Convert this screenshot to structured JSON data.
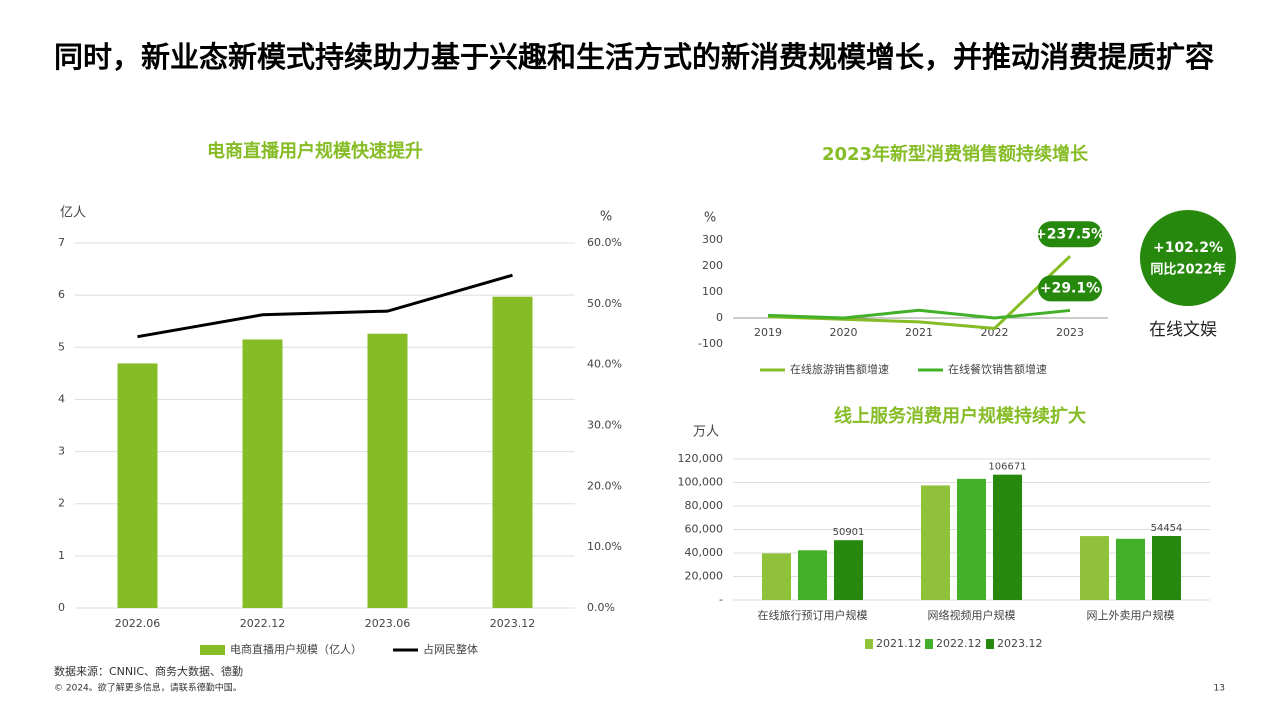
{
  "title": "同时，新业态新模式持续助力基于兴趣和生活方式的新消费规模增长，并推动消费提质扩容",
  "chart_data": [
    {
      "type": "bar",
      "title": "电商直播用户规模快速提升",
      "y_label": "亿人",
      "y2_label": "%",
      "categories": [
        "2022.06",
        "2022.12",
        "2023.06",
        "2023.12"
      ],
      "series": [
        {
          "name": "电商直播用户规模（亿人）",
          "color": "#86bc25",
          "values": [
            4.69,
            5.15,
            5.26,
            5.97
          ]
        },
        {
          "name": "占网民整体",
          "type": "line",
          "axis": "y2",
          "color": "#000000",
          "values": [
            44.6,
            48.2,
            48.8,
            54.7
          ]
        }
      ],
      "ylim": [
        0,
        7
      ],
      "yticks": [
        0,
        1,
        2,
        3,
        4,
        5,
        6,
        7
      ],
      "y2lim": [
        0,
        60
      ],
      "y2ticks": [
        {
          "value": 0,
          "label": "0.0%"
        },
        {
          "value": 10,
          "label": "10.0%"
        },
        {
          "value": 20,
          "label": "20.0%"
        },
        {
          "value": 30,
          "label": "30.0%"
        },
        {
          "value": 40,
          "label": "40.0%"
        },
        {
          "value": 50,
          "label": "50.0%"
        },
        {
          "value": 60,
          "label": "60.0%"
        }
      ],
      "grid": true
    },
    {
      "type": "line",
      "title": "2023年新型消费销售额持续增长",
      "y_label": "%",
      "categories": [
        "2019",
        "2020",
        "2021",
        "2022",
        "2023"
      ],
      "series": [
        {
          "name": "在线旅游销售额增速",
          "color": "#86bc25",
          "values": [
            5,
            -5,
            -15,
            -40,
            237.5
          ],
          "value_labels": [
            null,
            null,
            null,
            null,
            "+237.5%"
          ]
        },
        {
          "name": "在线餐饮销售额增速",
          "color": "#43b02a",
          "values": [
            10,
            0,
            30,
            0,
            29.1
          ],
          "value_labels": [
            null,
            null,
            null,
            null,
            "+29.1%"
          ]
        }
      ],
      "ylim": [
        -100,
        300
      ],
      "yticks": [
        -100,
        0,
        100,
        200,
        300
      ],
      "grid": false,
      "callout": {
        "value": "+102.2%",
        "note": "同比2022年",
        "label": "在线文娱"
      }
    },
    {
      "type": "bar",
      "title": "线上服务消费用户规模持续扩大",
      "y_label": "万人",
      "categories": [
        "在线旅行预订用户规模",
        "网络视频用户规模",
        "网上外卖用户规模"
      ],
      "series": [
        {
          "name": "2021.12",
          "color": "#8fc23a",
          "values": [
            39700,
            97500,
            54400
          ]
        },
        {
          "name": "2022.12",
          "color": "#43b02a",
          "values": [
            42300,
            103100,
            52100
          ]
        },
        {
          "name": "2023.12",
          "color": "#26890d",
          "values": [
            50901,
            106671,
            54454
          ],
          "show_values": true
        }
      ],
      "ylim": [
        0,
        120000
      ],
      "yticks": [
        {
          "value": 0,
          "label": "-"
        },
        {
          "value": 20000,
          "label": "20,000"
        },
        {
          "value": 40000,
          "label": "40,000"
        },
        {
          "value": 60000,
          "label": "60,000"
        },
        {
          "value": 80000,
          "label": "80,000"
        },
        {
          "value": 100000,
          "label": "100,000"
        },
        {
          "value": 120000,
          "label": "120,000"
        }
      ],
      "grid": true
    }
  ],
  "footer": {
    "source": "数据来源：CNNIC、商务大数据、德勤",
    "copyright": "© 2024。欲了解更多信息，请联系德勤中国。",
    "page": "13"
  }
}
